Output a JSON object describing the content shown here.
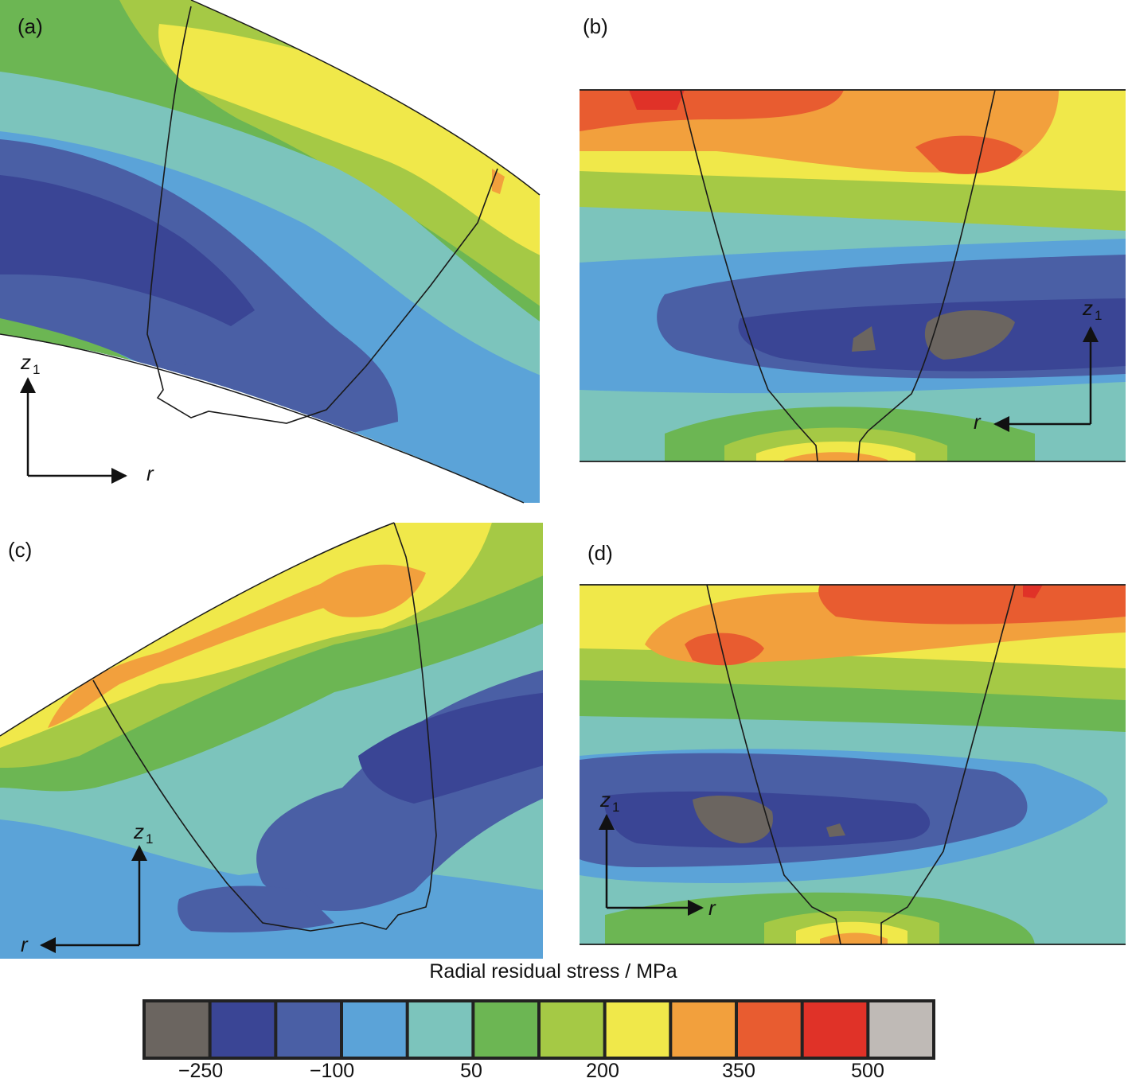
{
  "panels": [
    {
      "label": "(a)",
      "axes": {
        "vertical": "z",
        "vertical_sub": "1",
        "horizontal": "r"
      }
    },
    {
      "label": "(b)",
      "axes": {
        "vertical": "z",
        "vertical_sub": "1",
        "horizontal": "r"
      }
    },
    {
      "label": "(c)",
      "axes": {
        "vertical": "z",
        "vertical_sub": "1",
        "horizontal": "r"
      }
    },
    {
      "label": "(d)",
      "axes": {
        "vertical": "z",
        "vertical_sub": "1",
        "horizontal": "r"
      }
    }
  ],
  "colorbar": {
    "title": "Radial residual stress / MPa",
    "ticks": [
      "−250",
      "−100",
      "50",
      "200",
      "350",
      "500"
    ],
    "colors": [
      "#6b6560",
      "#3a4595",
      "#4a5fa5",
      "#5ba3d8",
      "#7cc4bc",
      "#6cb653",
      "#a5c945",
      "#f0e84a",
      "#f2a03d",
      "#e85c30",
      "#e03228",
      "#bfbab6"
    ]
  },
  "colors": {
    "c_low": "#6b6560",
    "c_dblue": "#3a4595",
    "c_mblue": "#4a5fa5",
    "c_lblue": "#5ba3d8",
    "c_teal": "#7cc4bc",
    "c_green": "#6cb653",
    "c_lgreen": "#a5c945",
    "c_yellow": "#f0e84a",
    "c_orange": "#f2a03d",
    "c_dorange": "#e85c30",
    "c_red": "#e03228",
    "outline": "#1a1a1a"
  }
}
